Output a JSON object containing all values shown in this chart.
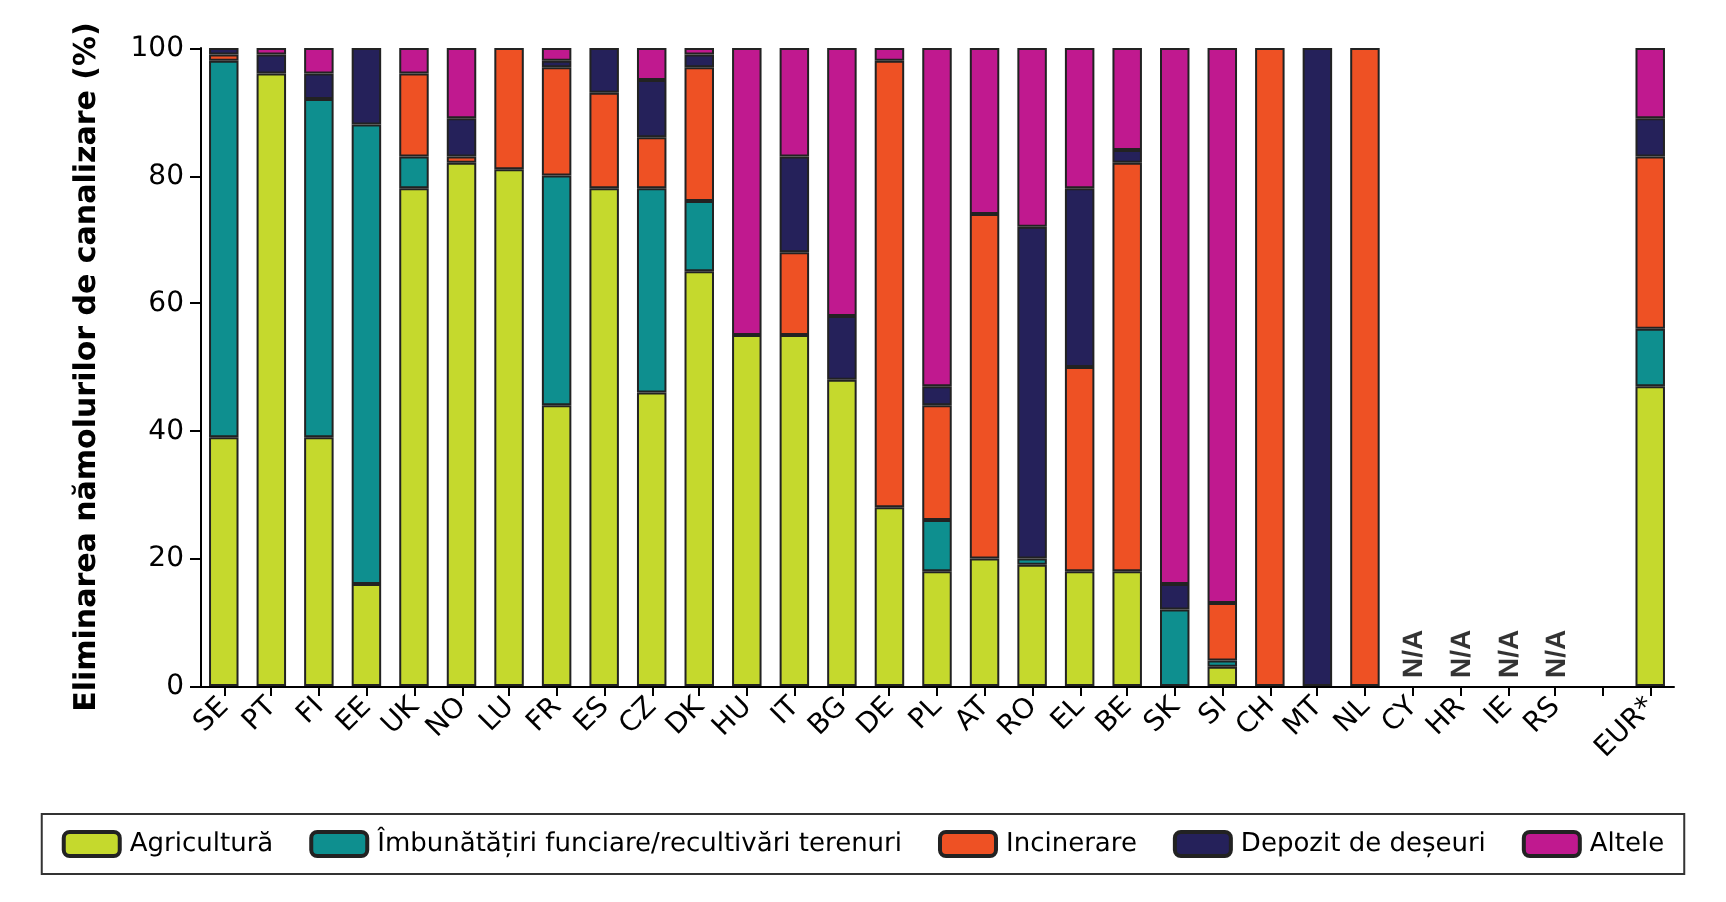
{
  "chart_data": {
    "type": "bar",
    "stacked": true,
    "ylabel": "Eliminarea nămolurilor de canalizare (%)",
    "categories": [
      "SE",
      "PT",
      "FI",
      "EE",
      "UK",
      "NO",
      "LU",
      "FR",
      "ES",
      "CZ",
      "DK",
      "HU",
      "IT",
      "BG",
      "DE",
      "PL",
      "AT",
      "RO",
      "EL",
      "BE",
      "SK",
      "SI",
      "CH",
      "MT",
      "NL",
      "CY",
      "HR",
      "IE",
      "RS",
      null,
      "EUR*"
    ],
    "series": [
      {
        "name": "Agricultură",
        "color": "#c5d92d",
        "values": [
          39,
          96,
          39,
          16,
          78,
          82,
          81,
          44,
          78,
          46,
          65,
          55,
          55,
          48,
          28,
          18,
          20,
          19,
          18,
          18,
          null,
          3,
          null,
          null,
          null,
          null,
          null,
          null,
          null,
          null,
          47
        ]
      },
      {
        "name": "Îmbunătățiri funciare/recultivări terenuri",
        "color": "#0e8f8f",
        "values": [
          59,
          null,
          53,
          72,
          5,
          null,
          null,
          36,
          null,
          32,
          11,
          null,
          null,
          null,
          null,
          8,
          null,
          1,
          null,
          null,
          12,
          1,
          null,
          null,
          null,
          null,
          null,
          null,
          null,
          null,
          9
        ]
      },
      {
        "name": "Incinerare",
        "color": "#ee5124",
        "values": [
          1,
          null,
          null,
          null,
          13,
          1,
          19,
          17,
          15,
          8,
          21,
          null,
          13,
          null,
          70,
          18,
          54,
          null,
          32,
          64,
          null,
          9,
          100,
          null,
          100,
          null,
          null,
          null,
          null,
          null,
          27
        ]
      },
      {
        "name": "Depozit de deșeuri",
        "color": "#25215a",
        "values": [
          1,
          3,
          4,
          12,
          null,
          6,
          null,
          1,
          7,
          9,
          2,
          null,
          15,
          10,
          null,
          3,
          null,
          52,
          28,
          2,
          4,
          null,
          null,
          100,
          null,
          null,
          null,
          null,
          null,
          null,
          6
        ]
      },
      {
        "name": "Altele",
        "color": "#c0198f",
        "values": [
          null,
          1,
          4,
          null,
          4,
          11,
          null,
          2,
          null,
          5,
          1,
          45,
          17,
          42,
          2,
          53,
          26,
          28,
          22,
          16,
          84,
          87,
          null,
          null,
          null,
          null,
          null,
          null,
          null,
          null,
          11
        ]
      }
    ],
    "ylim": [
      0,
      100
    ],
    "yticks": [
      0,
      20,
      40,
      60,
      80,
      100
    ],
    "grid": false,
    "legend": "bottom",
    "annotations": [
      "N/A",
      "N/A",
      "N/A",
      "N/A"
    ]
  }
}
